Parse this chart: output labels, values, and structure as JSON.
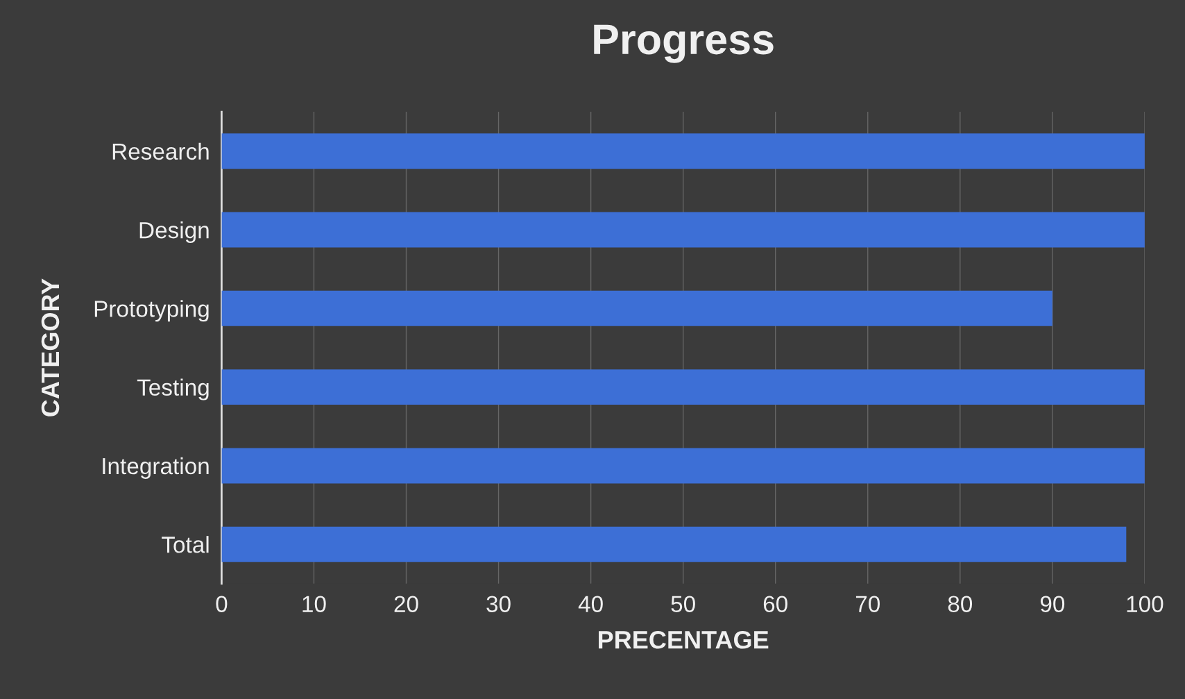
{
  "chart_data": {
    "type": "bar",
    "orientation": "horizontal",
    "title": "Progress",
    "xlabel": "PRECENTAGE",
    "ylabel": "CATEGORY",
    "categories": [
      "Research",
      "Design",
      "Prototyping",
      "Testing",
      "Integration",
      "Total"
    ],
    "values": [
      100,
      100,
      90,
      100,
      100,
      98
    ],
    "color": "#3d6fd6",
    "xlim": [
      0,
      100
    ],
    "xticks": [
      0,
      10,
      20,
      30,
      40,
      50,
      60,
      70,
      80,
      90,
      100
    ],
    "grid": "x"
  }
}
